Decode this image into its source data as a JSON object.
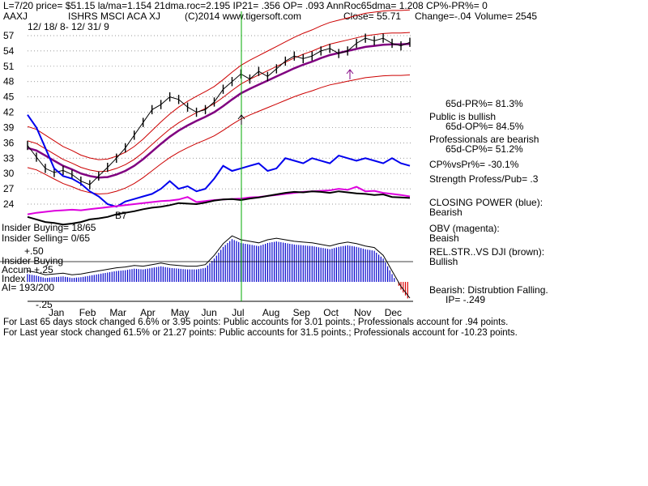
{
  "header": {
    "line1": "L=7/20  price= $51.15  la/ma=1.154 21dma.roc=2.195 IP21= .356 OP= .093 AnnRoc65dma= 1.208 CP%-PR%=  0",
    "ticker": "AAXJ",
    "name": "ISHRS MSCI ACA XJ",
    "copyright": "(C)2014 www.tigersoft.com",
    "close": "Close=  55.71",
    "change": "Change=-.04",
    "volume": "Volume= 2545",
    "date_range": "12/ 18/ 8- 12/ 31/ 9"
  },
  "right_panel": {
    "pr": "65d-PR%= 81.3%",
    "public": "Public is bullish",
    "op": "65d-OP%= 84.5%",
    "pros": "Professionals are bearish",
    "cp": "65d-CP%= 51.2%",
    "cpvspr": "CP%vsPr%= -30.1%",
    "strength": "Strength Profess/Pub= .3",
    "closing_power": "CLOSING POWER (blue):",
    "closing_power_status": "Bearish",
    "obv": "OBV (magenta):",
    "obv_status": "Beaish",
    "relstr": "REL.STR..VS DJI (brown):",
    "relstr_status": "Bullish",
    "bearish": "Bearish: Distrubtion Falling.",
    "ip": "IP= -.249"
  },
  "left_panel": {
    "insider_buying": "Insider Buying= 18/65",
    "insider_selling": "Insider Selling= 0/65",
    "insider_buying2": "Insider Buying",
    "accum": "Accum  +.25",
    "index": "Index",
    "ai": "AI= 193/200",
    "b7": "B7",
    "plus50": "+.50",
    "minus25": "-.25"
  },
  "footer": {
    "line1": "For Last 65 days stock changed  6.6% or  3.95 points:  Public accounts for  3.01 points.;  Professionals account for  .94 points.",
    "line2": "For Last year stock changed  61.5% or  21.27 points:  Public accounts for  31.5 points.;  Professionals account for -10.23 points."
  },
  "colors": {
    "price": "#000000",
    "bands": "#cc0000",
    "ma": "#800080",
    "closing_power": "#0000ee",
    "obv": "#dd00dd",
    "relstr": "#000000",
    "accum": "#0000cc",
    "marker": "#00aa00",
    "distribution": "#dd0000"
  },
  "chart_data": {
    "type": "line",
    "y_ticks": [
      24,
      27,
      30,
      33,
      36,
      39,
      42,
      45,
      48,
      51,
      54,
      57
    ],
    "ylim": [
      22,
      58.5
    ],
    "months": [
      "Jan",
      "Feb",
      "Mar",
      "Apr",
      "May",
      "Jun",
      "Jul",
      "Aug",
      "Sep",
      "Oct",
      "Nov",
      "Dec"
    ],
    "series": [
      {
        "values": [
          35.5,
          33.2,
          31.0,
          30.2,
          30.6,
          29.8,
          28.5,
          27.8,
          29.5,
          31.2,
          33.0,
          35.0,
          37.5,
          40.0,
          42.5,
          43.5,
          45.0,
          44.5,
          43.0,
          42.0,
          42.5,
          44.0,
          46.5,
          48.0,
          49.5,
          48.5,
          50.0,
          49.0,
          50.5,
          52.0,
          53.0,
          52.5,
          53.0,
          54.0,
          54.5,
          53.5,
          54.0,
          55.5,
          56.5,
          56.0,
          56.5,
          55.5,
          55.0,
          55.7
        ]
      },
      {
        "values": [
          35.0,
          34.5,
          33.5,
          32.5,
          31.5,
          30.8,
          30.0,
          29.5,
          29.2,
          29.3,
          29.8,
          30.5,
          31.5,
          32.8,
          34.3,
          35.8,
          37.2,
          38.4,
          39.4,
          40.3,
          41.1,
          42.0,
          43.2,
          44.5,
          45.7,
          46.6,
          47.4,
          48.2,
          49.0,
          49.8,
          50.6,
          51.3,
          51.9,
          52.6,
          53.2,
          53.6,
          54.0,
          54.4,
          54.8,
          55.0,
          55.2,
          55.3,
          55.3,
          55.4
        ]
      }
    ],
    "closing_power": [
      41.5,
      39.0,
      35.0,
      31.0,
      29.5,
      29.0,
      28.0,
      26.5,
      25.5,
      24.0,
      23.5,
      24.5,
      25.0,
      25.5,
      26.0,
      27.0,
      28.5,
      27.0,
      27.5,
      26.5,
      27.0,
      29.0,
      31.5,
      30.5,
      31.0,
      31.5,
      32.0,
      30.5,
      31.0,
      33.0,
      32.5,
      32.0,
      33.0,
      32.5,
      32.0,
      33.5,
      33.0,
      32.5,
      33.0,
      32.5,
      32.0,
      33.0,
      32.0,
      31.5
    ],
    "obv": [
      22.0,
      22.3,
      22.5,
      22.7,
      22.8,
      22.9,
      22.8,
      23.0,
      23.2,
      23.4,
      23.6,
      23.8,
      24.0,
      24.2,
      24.4,
      24.6,
      24.7,
      24.9,
      25.4,
      24.4,
      24.6,
      24.8,
      24.9,
      25.0,
      25.1,
      25.3,
      25.4,
      25.6,
      25.8,
      26.0,
      26.2,
      26.4,
      26.5,
      26.6,
      26.7,
      27.0,
      26.8,
      27.4,
      26.5,
      26.6,
      26.2,
      26.0,
      25.8,
      25.5
    ],
    "relstr": [
      21.5,
      21.0,
      20.5,
      20.3,
      20.0,
      20.2,
      20.5,
      21.0,
      21.2,
      21.5,
      22.0,
      22.3,
      22.6,
      23.0,
      23.3,
      23.5,
      23.8,
      24.2,
      24.1,
      24.0,
      24.3,
      24.7,
      24.9,
      25.0,
      24.8,
      25.1,
      25.3,
      25.6,
      25.9,
      26.2,
      26.4,
      26.3,
      26.5,
      26.4,
      26.2,
      26.5,
      26.3,
      26.1,
      26.0,
      25.8,
      25.9,
      25.4,
      25.3,
      25.2
    ],
    "accum": [
      0.1,
      0.08,
      0.05,
      0.06,
      0.07,
      0.05,
      0.06,
      0.08,
      0.1,
      0.12,
      0.14,
      0.15,
      0.17,
      0.16,
      0.18,
      0.2,
      0.18,
      0.17,
      0.16,
      0.16,
      0.18,
      0.3,
      0.45,
      0.55,
      0.5,
      0.48,
      0.46,
      0.5,
      0.52,
      0.5,
      0.48,
      0.47,
      0.46,
      0.44,
      0.42,
      0.45,
      0.47,
      0.45,
      0.42,
      0.4,
      0.3,
      0.1,
      -0.1,
      -0.25
    ],
    "accum_ylim": [
      -0.25,
      0.5
    ]
  }
}
